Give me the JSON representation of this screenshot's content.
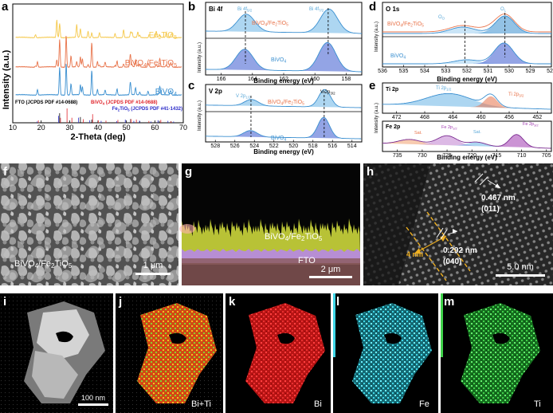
{
  "panels": {
    "a": {
      "label": "a",
      "xlabel": "2-Theta (deg)",
      "ylabel": "Intensity (a.u.)",
      "xticks": [
        "10",
        "20",
        "30",
        "40",
        "50",
        "60",
        "70"
      ],
      "series": [
        {
          "name": "Fe2TiO5",
          "label_main": "Fe",
          "label_sub": "2",
          "label_main2": "TiO",
          "label_sub2": "5",
          "color": "#f5c84a"
        },
        {
          "name": "BiVO4/Fe2TiO5",
          "label_main": "BiVO",
          "label_sub": "4",
          "label_main2": "/Fe",
          "label_sub2": "2",
          "label_main3": "TiO",
          "label_sub3": "5",
          "color": "#e8734a"
        },
        {
          "name": "BiVO4",
          "label_main": "BiVO",
          "label_sub": "4",
          "color": "#3a8fd0"
        }
      ],
      "refs": [
        {
          "text": "FTO (JCPDS PDF #14-0688)",
          "color": "#000000"
        },
        {
          "text": "BiVO4 (JCPDS PDF #14-0688)",
          "main": "BiVO",
          "sub": "4",
          "rest": " (JCPDS PDF #14-0688)",
          "color": "#e0242b"
        },
        {
          "text": "Fe2TiO5 (JCPDS PDF #41-1432)",
          "main": "Fe",
          "sub": "2",
          "main2": "TiO",
          "sub2": "5",
          "rest": " (JCPDS PDF #41-1432)",
          "color": "#2b2bc8"
        }
      ]
    },
    "b": {
      "label": "b",
      "title": "Bi 4f",
      "xlabel": "Binding energy (eV)",
      "ylabel": "Intensity (a.u.)",
      "xticks": [
        "166",
        "164",
        "162",
        "160",
        "158"
      ],
      "peak1": "Bi 4f",
      "peak1_sub": "5/2",
      "peak2": "Bi 4f",
      "peak2_sub": "7/2",
      "top": "BiVO4/Fe2TiO5",
      "bottom": "BiVO4"
    },
    "c": {
      "label": "c",
      "title": "V 2p",
      "xlabel": "Binding energy (eV)",
      "ylabel": "Intensity (a.u.)",
      "xticks": [
        "528",
        "526",
        "524",
        "522",
        "520",
        "518",
        "516",
        "514"
      ],
      "peak1": "V 2p",
      "peak1_sub": "1/2",
      "peak2": "V 2p",
      "peak2_sub": "3/2",
      "top": "BiVO4/Fe2TiO5",
      "bottom": "BiVO4"
    },
    "d": {
      "label": "d",
      "title": "O 1s",
      "xlabel": "Binding energy (eV)",
      "ylabel": "Intensity (a.u.)",
      "xticks": [
        "536",
        "535",
        "534",
        "533",
        "532",
        "531",
        "530",
        "529",
        "528"
      ],
      "peak1": "O",
      "peak1_sub": "O",
      "peak2": "O",
      "peak2_sub": "L",
      "top": "BiVO4/Fe2TiO5",
      "bottom": "BiVO4"
    },
    "e": {
      "label": "e",
      "title_top": "Ti 2p",
      "title_bottom": "Fe 2p",
      "xlabel": "Binding energy (eV)",
      "ylabel": "Intensity (a.u.)",
      "xticks_top": [
        "472",
        "468",
        "464",
        "460",
        "456",
        "452"
      ],
      "xticks_bottom": [
        "735",
        "730",
        "725",
        "720",
        "715",
        "710",
        "705"
      ],
      "ti_peak1": "Ti 2p",
      "ti_peak1_sub": "1/2",
      "ti_peak2": "Ti 2p",
      "ti_peak2_sub": "3/2",
      "fe_peak1": "Fe 2p",
      "fe_peak1_sub": "1/2",
      "fe_peak2": "Fe 2p",
      "fe_peak2_sub": "3/2",
      "sat": "Sat."
    },
    "f": {
      "label": "f",
      "caption_main": "BiVO",
      "caption_sub": "4",
      "caption_rest": "/Fe",
      "caption_sub2": "2",
      "caption_rest2": "TiO",
      "caption_sub3": "5",
      "scale": "1 μm"
    },
    "g": {
      "label": "g",
      "layer_top_main": "BiVO",
      "layer_top_sub": "4",
      "layer_top_rest": "/Fe",
      "layer_top_sub2": "2",
      "layer_top_rest2": "TiO",
      "layer_top_sub3": "5",
      "layer_bottom": "FTO",
      "scale": "2 μm"
    },
    "h": {
      "label": "h",
      "d1": "0.467 nm",
      "d1_plane": "(011)",
      "d2": "0.292 nm",
      "d2_plane": "(040)",
      "thick": "4 nm",
      "scale": "5.0 nm"
    },
    "i": {
      "label": "i",
      "scale": "100 nm"
    },
    "j": {
      "label": "j",
      "element": "Bi+Ti"
    },
    "k": {
      "label": "k",
      "element": "Bi"
    },
    "l": {
      "label": "l",
      "element": "Fe"
    },
    "m": {
      "label": "m",
      "element": "Ti"
    }
  }
}
